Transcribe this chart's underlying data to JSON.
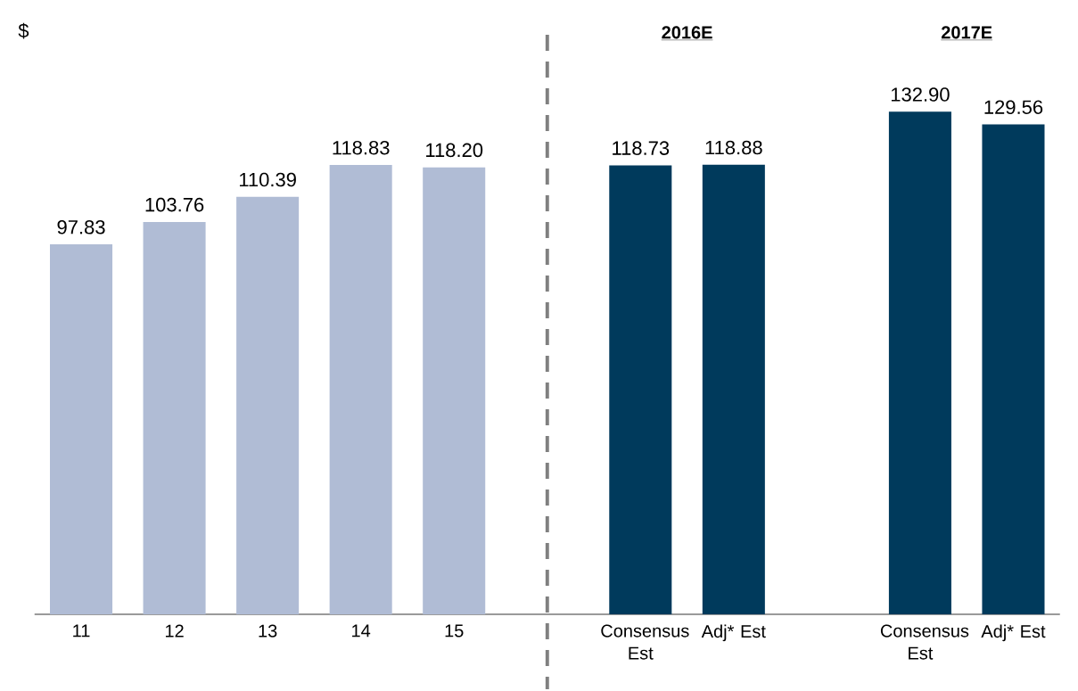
{
  "chart_data": {
    "type": "bar",
    "categories": [
      "11",
      "12",
      "13",
      "14",
      "15",
      null,
      "Consensus Est",
      "Adj* Est",
      null,
      "Consensus Est",
      "Adj* Est"
    ],
    "values": [
      97.83,
      103.76,
      110.39,
      118.83,
      118.2,
      null,
      118.73,
      118.88,
      null,
      132.9,
      129.56
    ],
    "value_labels": [
      "97.83",
      "103.76",
      "110.39",
      "118.83",
      "118.20",
      null,
      "118.73",
      "118.88",
      null,
      "132.90",
      "129.56"
    ],
    "colors": [
      "#b0bcd5",
      "#b0bcd5",
      "#b0bcd5",
      "#b0bcd5",
      "#b0bcd5",
      null,
      "#003a5c",
      "#003a5c",
      null,
      "#003a5c",
      "#003a5c"
    ],
    "tick_labels": "x",
    "annotations": [
      "$",
      "2016E",
      "2017E"
    ]
  }
}
